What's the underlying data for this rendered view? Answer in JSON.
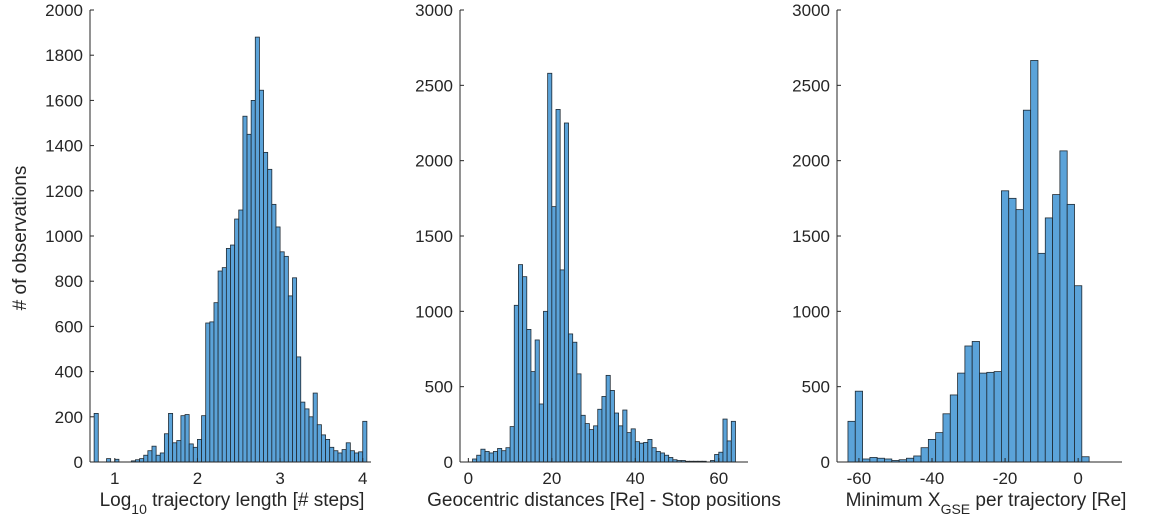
{
  "figure": {
    "ylabel": "# of observations"
  },
  "chart_data": [
    {
      "type": "bar",
      "xlabel": "Log10 trajectory length [# steps]",
      "xlabel_main": "Log",
      "xlabel_sub": "10",
      "xlabel_rest": " trajectory length [# steps]",
      "ylabel": "# of observations",
      "xlim": [
        0.7,
        4.1
      ],
      "ylim": [
        0,
        2000
      ],
      "xticks": [
        1,
        2,
        3,
        4
      ],
      "yticks": [
        0,
        200,
        400,
        600,
        800,
        1000,
        1200,
        1400,
        1600,
        1800,
        2000
      ],
      "bin_start": 0.75,
      "bin_width": 0.05,
      "values": [
        215,
        0,
        0,
        15,
        0,
        12,
        0,
        0,
        0,
        5,
        10,
        15,
        30,
        50,
        70,
        30,
        40,
        125,
        215,
        85,
        95,
        205,
        210,
        80,
        65,
        100,
        205,
        615,
        620,
        705,
        845,
        860,
        945,
        960,
        1075,
        1115,
        1530,
        1450,
        1600,
        1880,
        1645,
        1370,
        1295,
        1140,
        1040,
        930,
        910,
        735,
        815,
        465,
        265,
        235,
        200,
        305,
        165,
        120,
        100,
        65,
        50,
        40,
        55,
        85,
        50,
        40,
        45,
        180
      ],
      "color": "#5ba3d9",
      "edge": "#1f2a33",
      "grid": false
    },
    {
      "type": "bar",
      "xlabel": "Geocentric distances [Re] - Stop positions",
      "ylabel": "",
      "xlim": [
        -2,
        67
      ],
      "ylim": [
        0,
        3000
      ],
      "xticks": [
        0,
        20,
        40,
        60
      ],
      "yticks": [
        0,
        500,
        1000,
        1500,
        2000,
        2500,
        3000
      ],
      "bin_start": 1,
      "bin_width": 1,
      "values": [
        20,
        45,
        85,
        70,
        60,
        70,
        90,
        75,
        95,
        235,
        1040,
        1310,
        1230,
        880,
        600,
        810,
        385,
        1000,
        2580,
        1695,
        2340,
        1275,
        2250,
        850,
        795,
        585,
        310,
        255,
        215,
        240,
        350,
        435,
        575,
        475,
        325,
        240,
        345,
        195,
        220,
        135,
        125,
        130,
        150,
        95,
        70,
        60,
        45,
        30,
        15,
        10,
        10,
        5,
        5,
        5,
        5,
        5,
        0,
        10,
        50,
        65,
        285,
        140,
        270
      ],
      "color": "#5ba3d9",
      "edge": "#1f2a33",
      "grid": false
    },
    {
      "type": "bar",
      "xlabel": "Minimum XGSE per trajectory [Re]",
      "xlabel_main": "Minimum X",
      "xlabel_sub": "GSE",
      "xlabel_rest": " per trajectory [Re]",
      "ylabel": "",
      "xlim": [
        -66,
        12
      ],
      "ylim": [
        0,
        3000
      ],
      "xticks": [
        -60,
        -40,
        -20,
        0
      ],
      "yticks": [
        0,
        500,
        1000,
        1500,
        2000,
        2500,
        3000
      ],
      "bin_start": -63,
      "bin_width": 2,
      "values": [
        270,
        470,
        20,
        30,
        25,
        20,
        10,
        15,
        25,
        40,
        95,
        150,
        195,
        320,
        445,
        590,
        770,
        800,
        590,
        595,
        600,
        1800,
        1750,
        1675,
        2335,
        2665,
        1385,
        1620,
        1775,
        2065,
        1710,
        1170,
        35
      ],
      "color": "#5ba3d9",
      "edge": "#1f2a33",
      "grid": false
    }
  ]
}
